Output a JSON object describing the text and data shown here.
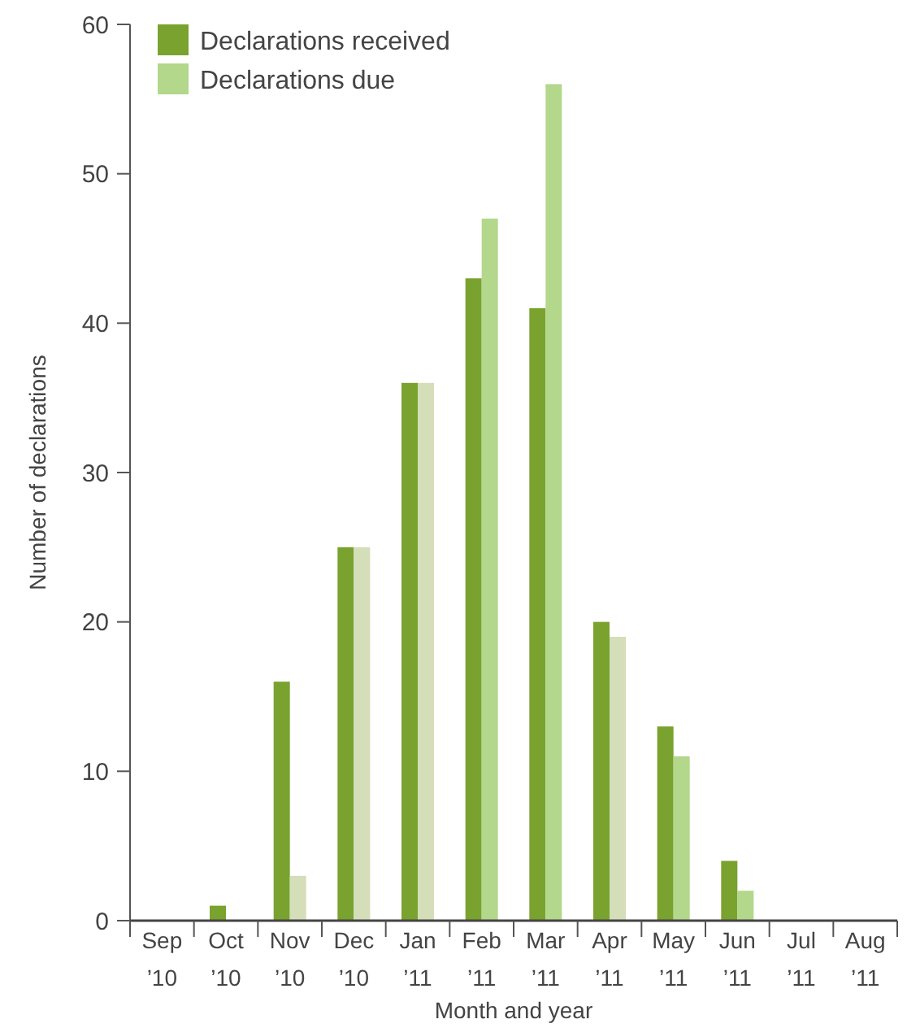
{
  "chart_data": {
    "type": "bar",
    "xlabel": "Month and year",
    "ylabel": "Number of declarations",
    "categories": [
      "Sep ’10",
      "Oct ’10",
      "Nov ’10",
      "Dec ’10",
      "Jan ’11",
      "Feb ’11",
      "Mar ’11",
      "Apr ’11",
      "May ’11",
      "Jun ’11",
      "Jul ’11",
      "Aug ’11"
    ],
    "series": [
      {
        "name": "Declarations received",
        "color": "#7aa22f",
        "values": [
          0,
          1,
          16,
          25,
          36,
          43,
          41,
          20,
          13,
          4,
          0,
          0
        ]
      },
      {
        "name": "Declarations due",
        "color": "#b3d78b",
        "colors": [
          "#b3d78b",
          "#b3d78b",
          "#d4deb8",
          "#d4deb8",
          "#d4deb8",
          "#b3d78b",
          "#b3d78b",
          "#d4deb8",
          "#b3d78b",
          "#b3d78b",
          "#b3d78b",
          "#b3d78b"
        ],
        "values": [
          0,
          0,
          3,
          25,
          36,
          47,
          56,
          19,
          11,
          2,
          0,
          0
        ]
      }
    ],
    "ylim": [
      0,
      60
    ],
    "yticks": [
      0,
      10,
      20,
      30,
      40,
      50,
      60
    ],
    "legend": "top left",
    "grid": false
  }
}
